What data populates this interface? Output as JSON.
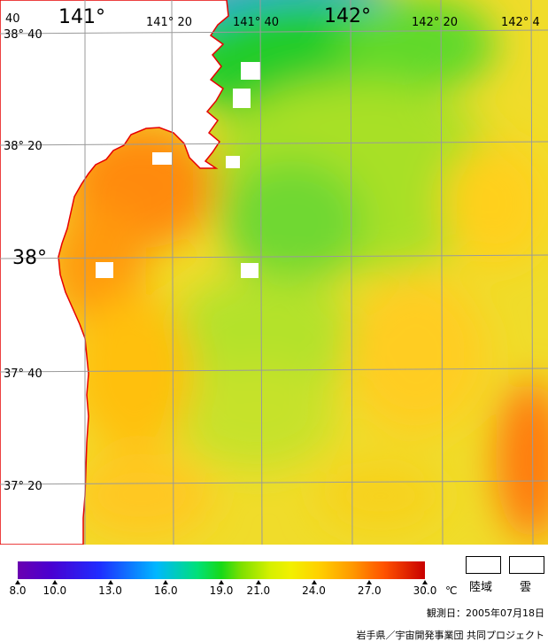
{
  "map": {
    "lon_labels": [
      {
        "text": "141°",
        "style": "big"
      },
      {
        "text": "141° 20",
        "style": "small"
      },
      {
        "text": "141° 40",
        "style": "small"
      },
      {
        "text": "142°",
        "style": "big"
      },
      {
        "text": "142° 20",
        "style": "small"
      },
      {
        "text": "142° 4",
        "style": "small"
      }
    ],
    "corner_label": "40",
    "lat_labels": [
      {
        "text": "38° 40",
        "style": "small"
      },
      {
        "text": "38° 20",
        "style": "small"
      },
      {
        "text": "38°",
        "style": "big"
      },
      {
        "text": "37° 40",
        "style": "small"
      },
      {
        "text": "37° 20",
        "style": "small"
      }
    ],
    "colors": {
      "land": "#ffffff",
      "coast": "#e60000",
      "grid": "#9a9a9a"
    }
  },
  "legend": {
    "ticks": [
      "8.0",
      "10.0",
      "13.0",
      "16.0",
      "19.0",
      "21.0",
      "24.0",
      "27.0",
      "30.0"
    ],
    "tick_values": [
      8.0,
      10.0,
      13.0,
      16.0,
      19.0,
      21.0,
      24.0,
      27.0,
      30.0
    ],
    "range": [
      8.0,
      30.0
    ],
    "unit": "℃",
    "land_label": "陸域",
    "cloud_label": "雲"
  },
  "footer": {
    "observation": "観測日：2005年07月18日",
    "credit": "岩手県／宇宙開発事業団  共同プロジェクト"
  }
}
